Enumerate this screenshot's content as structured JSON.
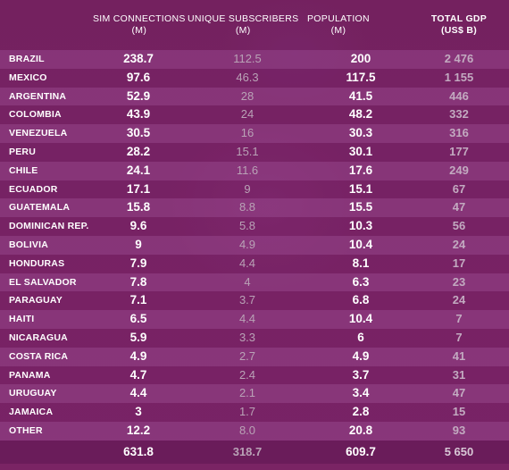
{
  "headers": {
    "sim": [
      "SIM CONNECTIONS",
      "(M)"
    ],
    "uniq": [
      "UNIQUE SUBSCRIBERS",
      "(M)"
    ],
    "pop": [
      "POPULATION",
      "(M)"
    ],
    "gdp": [
      "TOTAL GDP",
      "(US$ B)"
    ]
  },
  "chart_data": {
    "type": "table",
    "columns": [
      "SIM CONNECTIONS (M)",
      "UNIQUE SUBSCRIBERS (M)",
      "POPULATION (M)",
      "TOTAL GDP (US$ B)"
    ],
    "rows": [
      {
        "country": "BRAZIL",
        "sim": "238.7",
        "uniq": "112.5",
        "pop": "200",
        "gdp": "2 476"
      },
      {
        "country": "MEXICO",
        "sim": "97.6",
        "uniq": "46.3",
        "pop": "117.5",
        "gdp": "1 155"
      },
      {
        "country": "ARGENTINA",
        "sim": "52.9",
        "uniq": "28",
        "pop": "41.5",
        "gdp": "446"
      },
      {
        "country": "COLOMBIA",
        "sim": "43.9",
        "uniq": "24",
        "pop": "48.2",
        "gdp": "332"
      },
      {
        "country": "VENEZUELA",
        "sim": "30.5",
        "uniq": "16",
        "pop": "30.3",
        "gdp": "316"
      },
      {
        "country": "PERU",
        "sim": "28.2",
        "uniq": "15.1",
        "pop": "30.1",
        "gdp": "177"
      },
      {
        "country": "CHILE",
        "sim": "24.1",
        "uniq": "11.6",
        "pop": "17.6",
        "gdp": "249"
      },
      {
        "country": "ECUADOR",
        "sim": "17.1",
        "uniq": "9",
        "pop": "15.1",
        "gdp": "67"
      },
      {
        "country": "GUATEMALA",
        "sim": "15.8",
        "uniq": "8.8",
        "pop": "15.5",
        "gdp": "47"
      },
      {
        "country": "DOMINICAN REP.",
        "sim": "9.6",
        "uniq": "5.8",
        "pop": "10.3",
        "gdp": "56"
      },
      {
        "country": "BOLIVIA",
        "sim": "9",
        "uniq": "4.9",
        "pop": "10.4",
        "gdp": "24"
      },
      {
        "country": "HONDURAS",
        "sim": "7.9",
        "uniq": "4.4",
        "pop": "8.1",
        "gdp": "17"
      },
      {
        "country": "EL SALVADOR",
        "sim": "7.8",
        "uniq": "4",
        "pop": "6.3",
        "gdp": "23"
      },
      {
        "country": "PARAGUAY",
        "sim": "7.1",
        "uniq": "3.7",
        "pop": "6.8",
        "gdp": "24"
      },
      {
        "country": "HAITI",
        "sim": "6.5",
        "uniq": "4.4",
        "pop": "10.4",
        "gdp": "7"
      },
      {
        "country": "NICARAGUA",
        "sim": "5.9",
        "uniq": "3.3",
        "pop": "6",
        "gdp": "7"
      },
      {
        "country": "COSTA RICA",
        "sim": "4.9",
        "uniq": "2.7",
        "pop": "4.9",
        "gdp": "41"
      },
      {
        "country": "PANAMA",
        "sim": "4.7",
        "uniq": "2.4",
        "pop": "3.7",
        "gdp": "31"
      },
      {
        "country": "URUGUAY",
        "sim": "4.4",
        "uniq": "2.1",
        "pop": "3.4",
        "gdp": "47"
      },
      {
        "country": "JAMAICA",
        "sim": "3",
        "uniq": "1.7",
        "pop": "2.8",
        "gdp": "15"
      },
      {
        "country": "OTHER",
        "sim": "12.2",
        "uniq": "8.0",
        "pop": "20.8",
        "gdp": "93"
      }
    ],
    "totals": {
      "sim": "631.8",
      "uniq": "318.7",
      "pop": "609.7",
      "gdp": "5 650"
    }
  }
}
